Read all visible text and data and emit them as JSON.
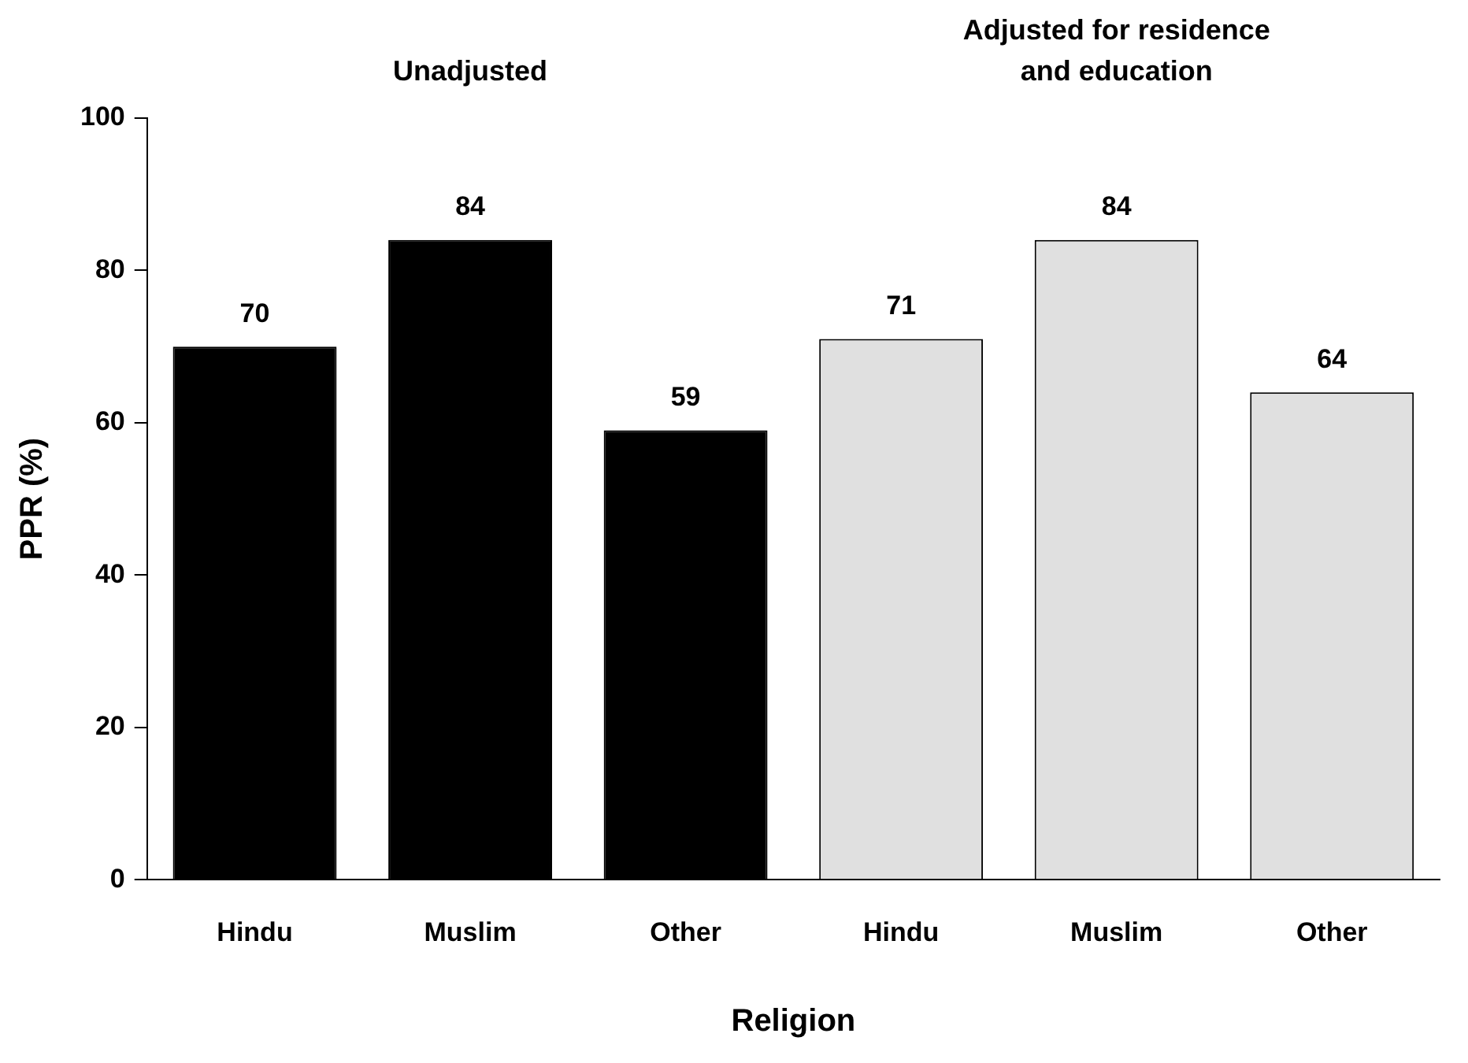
{
  "chart_data": {
    "type": "bar",
    "xlabel": "Religion",
    "ylabel": "PPR (%)",
    "categories": [
      "Hindu",
      "Muslim",
      "Other",
      "Hindu",
      "Muslim",
      "Other"
    ],
    "series": [
      {
        "color": "#000000",
        "values": [
          70,
          84,
          59,
          null,
          null,
          null
        ]
      },
      {
        "color": "#e0e0e0",
        "values": [
          null,
          null,
          null,
          71,
          84,
          64
        ]
      }
    ],
    "annotations": [
      "Unadjusted",
      "Adjusted for residence and education"
    ],
    "ylim": [
      0,
      100
    ],
    "yticks": [
      0,
      20,
      40,
      60,
      80,
      100
    ],
    "grid": false,
    "legend": false,
    "data_labels": true
  }
}
